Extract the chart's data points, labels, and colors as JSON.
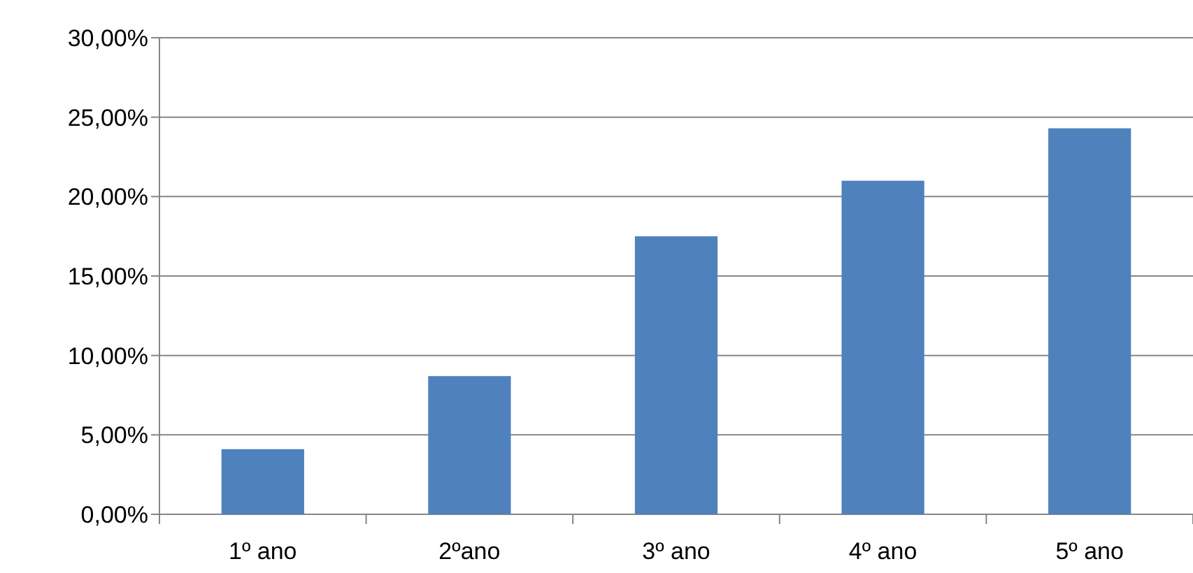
{
  "chart_data": {
    "type": "bar",
    "categories": [
      "1º ano",
      "2ºano",
      "3º ano",
      "4º ano",
      "5º ano"
    ],
    "values": [
      4.1,
      8.7,
      17.5,
      21,
      24.3
    ],
    "color": "#4f81bd",
    "ylim": [
      0,
      30
    ],
    "yticks": [
      {
        "value": 0,
        "label": "0,00%"
      },
      {
        "value": 5,
        "label": "5,00%"
      },
      {
        "value": 10,
        "label": "10,00%"
      },
      {
        "value": 15,
        "label": "15,00%"
      },
      {
        "value": 20,
        "label": "20,00%"
      },
      {
        "value": 25,
        "label": "25,00%"
      },
      {
        "value": 30,
        "label": "30,00%"
      }
    ],
    "grid": "y"
  }
}
